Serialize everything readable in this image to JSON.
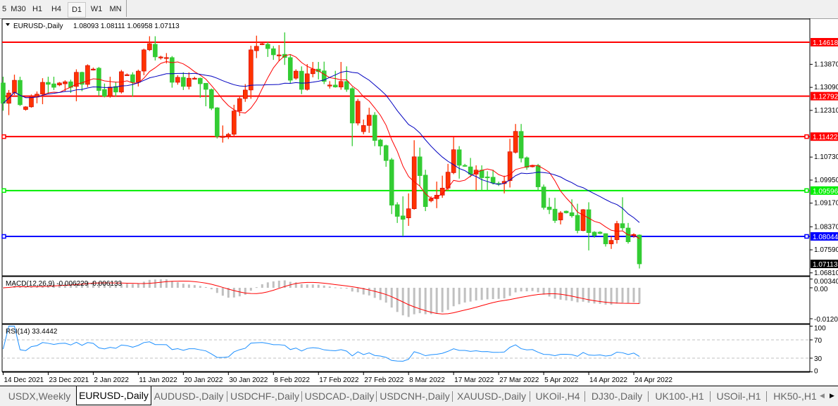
{
  "timeframes": [
    {
      "label": "5",
      "active": false
    },
    {
      "label": "M30",
      "active": false
    },
    {
      "label": "H1",
      "active": false
    },
    {
      "label": "H4",
      "active": false
    },
    {
      "label": "D1",
      "active": true
    },
    {
      "label": "W1",
      "active": false
    },
    {
      "label": "MN",
      "active": false
    }
  ],
  "chart": {
    "symbol_label": "EURUSD-,Daily",
    "ohlc_label": "1.08093 1.08111 1.06958 1.07113",
    "colors": {
      "bull": "#ff3300",
      "bear": "#33cc33",
      "fast_ma": "#ff0000",
      "slow_ma": "#0000c0",
      "macd_hist": "#c0c0c0",
      "macd_signal": "#ff0000",
      "rsi": "#1e90ff"
    },
    "price_ticks": [
      "1.13870",
      "1.13090",
      "1.12310",
      "1.10730",
      "1.09950",
      "1.09170",
      "1.08370",
      "1.07590",
      "1.06810"
    ],
    "hlines": [
      {
        "price": 1.14618,
        "label": "1.14618",
        "color": "#ff0000"
      },
      {
        "price": 1.12792,
        "label": "1.12792",
        "color": "#ff0000"
      },
      {
        "price": 1.11422,
        "label": "1.11422",
        "color": "#ff0000"
      },
      {
        "price": 1.09596,
        "label": "1.09596",
        "color": "#00ee00"
      },
      {
        "price": 1.08044,
        "label": "1.08044",
        "color": "#0000ff"
      }
    ],
    "current_price": {
      "price": 1.07113,
      "label": "1.07113"
    },
    "date_ticks": [
      "14 Dec 2021",
      "23 Dec 2021",
      "2 Jan 2022",
      "11 Jan 2022",
      "20 Jan 2022",
      "30 Jan 2022",
      "8 Feb 2022",
      "17 Feb 2022",
      "27 Feb 2022",
      "8 Mar 2022",
      "17 Mar 2022",
      "27 Mar 2022",
      "5 Apr 2022",
      "14 Apr 2022",
      "24 Apr 2022"
    ]
  },
  "chart_data": {
    "type": "candlestick",
    "ylim": [
      1.0681,
      1.153
    ],
    "ohlc": [
      [
        1.1324,
        1.1345,
        1.123,
        1.1255
      ],
      [
        1.1255,
        1.13,
        1.1215,
        1.129
      ],
      [
        1.129,
        1.1352,
        1.1283,
        1.1333
      ],
      [
        1.1333,
        1.1345,
        1.1246,
        1.125
      ],
      [
        1.1234,
        1.1245,
        1.123,
        1.1243
      ],
      [
        1.1243,
        1.1285,
        1.124,
        1.1276
      ],
      [
        1.1276,
        1.1295,
        1.1255,
        1.1286
      ],
      [
        1.1286,
        1.134,
        1.1252,
        1.1326
      ],
      [
        1.1326,
        1.1345,
        1.1288,
        1.1319
      ],
      [
        1.1321,
        1.1345,
        1.13,
        1.1309
      ],
      [
        1.1317,
        1.1327,
        1.1313,
        1.1324
      ],
      [
        1.1321,
        1.1333,
        1.1295,
        1.1328
      ],
      [
        1.1328,
        1.1335,
        1.129,
        1.1309
      ],
      [
        1.1312,
        1.137,
        1.1262,
        1.136
      ],
      [
        1.136,
        1.1362,
        1.1296,
        1.1319
      ],
      [
        1.1319,
        1.1387,
        1.131,
        1.1383
      ],
      [
        1.1371,
        1.1376,
        1.1366,
        1.1371
      ],
      [
        1.1374,
        1.1378,
        1.128,
        1.1298
      ],
      [
        1.1302,
        1.1322,
        1.1275,
        1.1279
      ],
      [
        1.1279,
        1.1345,
        1.1274,
        1.131
      ],
      [
        1.1312,
        1.1328,
        1.1278,
        1.1293
      ],
      [
        1.1293,
        1.1368,
        1.1288,
        1.1362
      ],
      [
        1.135,
        1.1356,
        1.1348,
        1.1352
      ],
      [
        1.1352,
        1.136,
        1.1278,
        1.1326
      ],
      [
        1.1326,
        1.1369,
        1.1312,
        1.1364
      ],
      [
        1.1364,
        1.144,
        1.135,
        1.1436
      ],
      [
        1.1436,
        1.1482,
        1.1432,
        1.1457
      ],
      [
        1.1455,
        1.1482,
        1.14,
        1.1412
      ],
      [
        1.1412,
        1.1416,
        1.1403,
        1.1412
      ],
      [
        1.141,
        1.1425,
        1.139,
        1.141
      ],
      [
        1.141,
        1.1415,
        1.1308,
        1.1326
      ],
      [
        1.1326,
        1.135,
        1.1318,
        1.1343
      ],
      [
        1.1343,
        1.136,
        1.13,
        1.1312
      ],
      [
        1.1312,
        1.136,
        1.1302,
        1.134
      ],
      [
        1.134,
        1.1345,
        1.1336,
        1.134
      ],
      [
        1.134,
        1.1342,
        1.1274,
        1.1321
      ],
      [
        1.1323,
        1.1323,
        1.1245,
        1.1302
      ],
      [
        1.1302,
        1.1305,
        1.1232,
        1.1238
      ],
      [
        1.124,
        1.1242,
        1.1136,
        1.1143
      ],
      [
        1.1143,
        1.118,
        1.1122,
        1.1143
      ],
      [
        1.1143,
        1.1155,
        1.1134,
        1.115
      ],
      [
        1.115,
        1.125,
        1.1145,
        1.1229
      ],
      [
        1.1229,
        1.128,
        1.1212,
        1.1271
      ],
      [
        1.1271,
        1.132,
        1.126,
        1.13
      ],
      [
        1.13,
        1.145,
        1.127,
        1.1436
      ],
      [
        1.1433,
        1.1484,
        1.1408,
        1.1448
      ],
      [
        1.1457,
        1.146,
        1.1452,
        1.1457
      ],
      [
        1.1455,
        1.1462,
        1.1412,
        1.144
      ],
      [
        1.144,
        1.1449,
        1.1402,
        1.1419
      ],
      [
        1.1419,
        1.1452,
        1.1398,
        1.1419
      ],
      [
        1.1421,
        1.1495,
        1.1385,
        1.141
      ],
      [
        1.141,
        1.142,
        1.1322,
        1.1333
      ],
      [
        1.134,
        1.137,
        1.1335,
        1.1364
      ],
      [
        1.1364,
        1.138,
        1.1286,
        1.1302
      ],
      [
        1.1302,
        1.1388,
        1.1298,
        1.1355
      ],
      [
        1.1355,
        1.1395,
        1.1343,
        1.1371
      ],
      [
        1.1371,
        1.1395,
        1.1336,
        1.1362
      ],
      [
        1.1365,
        1.1396,
        1.132,
        1.1329
      ],
      [
        1.1317,
        1.133,
        1.1305,
        1.1317
      ],
      [
        1.1317,
        1.1365,
        1.1308,
        1.131
      ],
      [
        1.131,
        1.1395,
        1.1301,
        1.1329
      ],
      [
        1.1329,
        1.138,
        1.1294,
        1.1302
      ],
      [
        1.1305,
        1.131,
        1.111,
        1.1188
      ],
      [
        1.1188,
        1.127,
        1.118,
        1.1262
      ],
      [
        1.1159,
        1.12,
        1.115,
        1.118
      ],
      [
        1.118,
        1.124,
        1.1155,
        1.1215
      ],
      [
        1.1215,
        1.1225,
        1.111,
        1.1129
      ],
      [
        1.1131,
        1.1135,
        1.108,
        1.111
      ],
      [
        1.1112,
        1.1115,
        1.104,
        1.1061
      ],
      [
        1.1064,
        1.107,
        1.088,
        1.091
      ],
      [
        1.0912,
        1.092,
        1.085,
        1.0872
      ],
      [
        1.0874,
        1.094,
        1.0805,
        1.0862
      ],
      [
        1.0867,
        1.095,
        1.084,
        1.0898
      ],
      [
        1.0898,
        1.113,
        1.0895,
        1.1074
      ],
      [
        1.1074,
        1.1105,
        1.0975,
        1.101
      ],
      [
        1.1012,
        1.103,
        1.089,
        1.0905
      ],
      [
        1.0925,
        1.094,
        1.092,
        1.0932
      ],
      [
        1.0932,
        1.099,
        1.09,
        1.0944
      ],
      [
        1.0944,
        1.101,
        1.0935,
        1.0968
      ],
      [
        1.0968,
        1.105,
        1.096,
        1.1022
      ],
      [
        1.102,
        1.114,
        1.1015,
        1.1098
      ],
      [
        1.1098,
        1.111,
        1.1,
        1.1045
      ],
      [
        1.1045,
        1.105,
        1.104,
        1.1044
      ],
      [
        1.104,
        1.107,
        1.1005,
        1.1015
      ],
      [
        1.1015,
        1.1045,
        1.096,
        1.1029
      ],
      [
        1.1029,
        1.1045,
        1.096,
        1.1003
      ],
      [
        1.1006,
        1.1025,
        1.096,
        1.1005
      ],
      [
        1.1005,
        1.103,
        1.098,
        1.0985
      ],
      [
        1.0984,
        1.099,
        1.0975,
        1.0983
      ],
      [
        1.0983,
        1.101,
        1.095,
        1.0991
      ],
      [
        1.0993,
        1.1135,
        1.097,
        1.1091
      ],
      [
        1.1089,
        1.1185,
        1.1085,
        1.116
      ],
      [
        1.116,
        1.1185,
        1.1055,
        1.1069
      ],
      [
        1.1071,
        1.1075,
        1.103,
        1.1038
      ],
      [
        1.104,
        1.1047,
        1.1038,
        1.1045
      ],
      [
        1.1045,
        1.105,
        1.096,
        1.0972
      ],
      [
        1.0972,
        1.098,
        1.0895,
        1.0902
      ],
      [
        1.0904,
        1.0935,
        1.088,
        1.0895
      ],
      [
        1.0897,
        1.0935,
        1.085,
        1.0858
      ],
      [
        1.086,
        1.089,
        1.0845,
        1.0884
      ],
      [
        1.089,
        1.0892,
        1.0882,
        1.0884
      ],
      [
        1.0885,
        1.093,
        1.0868,
        1.0874
      ],
      [
        1.0876,
        1.0915,
        1.0815,
        1.0824
      ],
      [
        1.0824,
        1.0897,
        1.0822,
        1.0895
      ],
      [
        1.0895,
        1.092,
        1.0757,
        1.0817
      ],
      [
        1.0819,
        1.0822,
        1.08,
        1.0807
      ],
      [
        1.0819,
        1.0822,
        1.0812,
        1.0814
      ],
      [
        1.0814,
        1.0815,
        1.077,
        1.0779
      ],
      [
        1.0779,
        1.0805,
        1.0762,
        1.0791
      ],
      [
        1.0793,
        1.0857,
        1.078,
        1.0848
      ],
      [
        1.0848,
        1.0937,
        1.0825,
        1.0833
      ],
      [
        1.0833,
        1.085,
        1.078,
        1.0786
      ],
      [
        1.0809,
        1.0815,
        1.08,
        1.0811
      ],
      [
        1.08093,
        1.08111,
        1.06958,
        1.07113
      ]
    ]
  },
  "macd": {
    "label": "MACD(12,26,9) -0.006229 -0.006133",
    "ticks": [
      "0.003408",
      "0.00",
      "-0.01205"
    ],
    "ylim": [
      -0.01205,
      0.003408
    ]
  },
  "rsi": {
    "label": "RSI(14) 33.4442",
    "ticks": [
      "100",
      "70",
      "30",
      "0"
    ],
    "levels": [
      70,
      30
    ]
  },
  "tabs": [
    {
      "label": "USDX,Weekly",
      "active": false
    },
    {
      "label": "EURUSD-,Daily",
      "active": true
    },
    {
      "label": "AUDUSD-,Daily",
      "active": false
    },
    {
      "label": "USDCHF-,Daily",
      "active": false
    },
    {
      "label": "USDCAD-,Daily",
      "active": false
    },
    {
      "label": "USDCNH-,Daily",
      "active": false
    },
    {
      "label": "XAUUSD-,Daily",
      "active": false
    },
    {
      "label": "UKOil-,H4",
      "active": false
    },
    {
      "label": "DJ30-,Daily",
      "active": false
    },
    {
      "label": "UK100-,H1",
      "active": false
    },
    {
      "label": "USOil-,H1",
      "active": false
    },
    {
      "label": "HK50-,H1",
      "active": false
    }
  ],
  "icons": {
    "scroll_left": "triangle-left",
    "scroll_right": "triangle-right",
    "chart_menu": "triangle-down"
  }
}
